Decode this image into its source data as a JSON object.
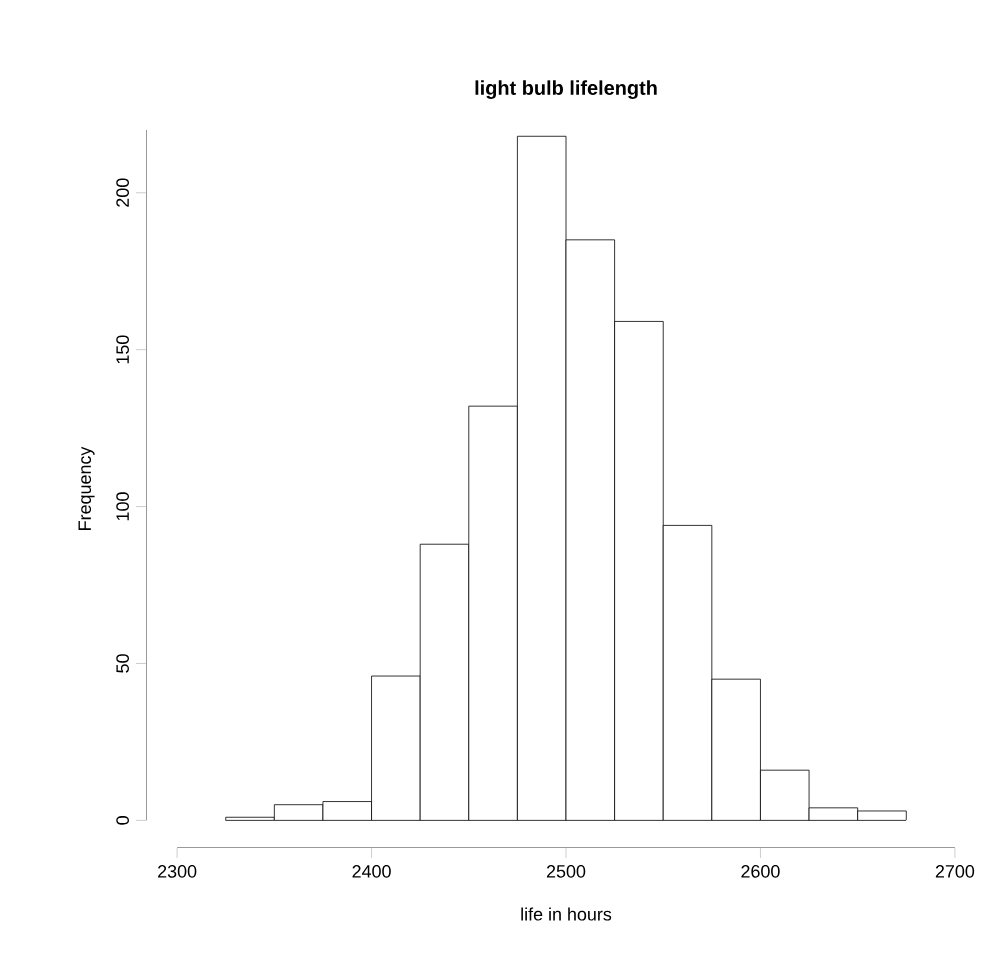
{
  "chart_data": {
    "type": "histogram",
    "title": "light bulb lifelength",
    "xlabel": "life in hours",
    "ylabel": "Frequency",
    "bins": [
      2300,
      2325,
      2350,
      2375,
      2400,
      2425,
      2450,
      2475,
      2500,
      2525,
      2550,
      2575,
      2600,
      2625,
      2650,
      2675,
      2700
    ],
    "values": [
      0,
      1,
      5,
      6,
      46,
      88,
      132,
      218,
      185,
      159,
      94,
      45,
      16,
      4,
      3,
      0
    ],
    "color": "#ffffff",
    "xlim": [
      2300,
      2700
    ],
    "xticks": [
      2300,
      2400,
      2500,
      2600,
      2700
    ],
    "ylim": [
      0,
      220
    ],
    "yticks": [
      0,
      50,
      100,
      150,
      200
    ],
    "grid": false
  }
}
